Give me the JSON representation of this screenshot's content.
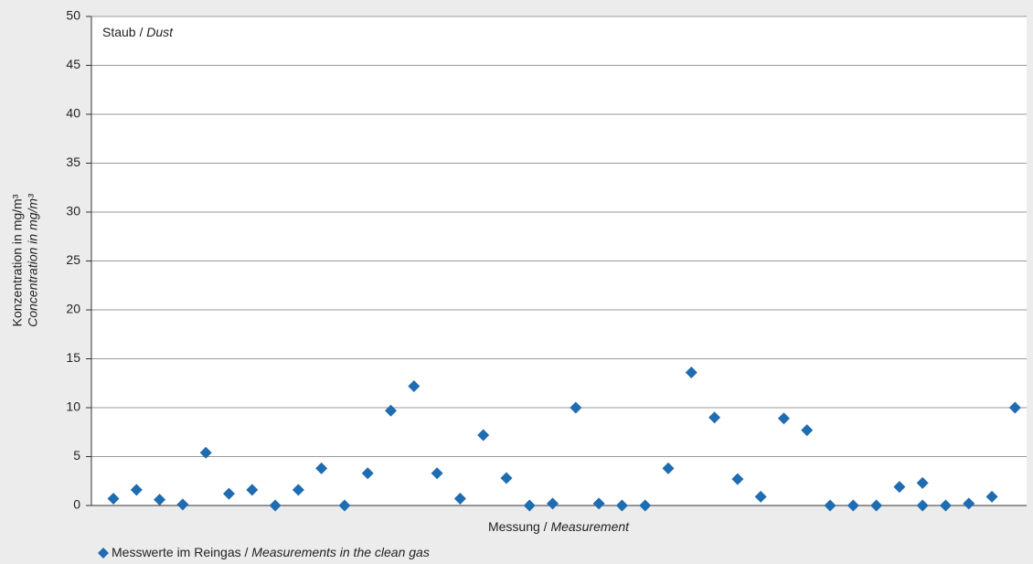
{
  "chart_data": {
    "type": "scatter",
    "annotation": {
      "main": "Staub / ",
      "italic": "Dust"
    },
    "y_label": [
      "Konzentration in mg/m³",
      "Concentration in mg/m³"
    ],
    "x_label": {
      "main": "Messung / ",
      "italic": "Measurement"
    },
    "series": [
      {
        "name": {
          "main": "Messwerte im Reingas / ",
          "italic": "Measurements in the clean gas"
        },
        "color": "#1f6cb0",
        "x": [
          1,
          2,
          3,
          4,
          5,
          6,
          7,
          8,
          9,
          10,
          11,
          12,
          13,
          14,
          15,
          16,
          17,
          18,
          19,
          20,
          21,
          22,
          23,
          24,
          25,
          26,
          27,
          28,
          29,
          30,
          31,
          32,
          33,
          34,
          35,
          36,
          36,
          37,
          38,
          39,
          40
        ],
        "values": [
          0.7,
          1.6,
          0.6,
          0.1,
          5.4,
          1.2,
          1.6,
          0,
          1.6,
          3.8,
          0,
          3.3,
          9.7,
          12.2,
          3.3,
          0.7,
          7.2,
          2.8,
          0,
          0.2,
          10.0,
          0.2,
          0,
          0,
          3.8,
          13.6,
          9.0,
          2.7,
          0.9,
          8.9,
          7.7,
          0,
          0,
          0,
          1.9,
          2.3,
          0,
          0,
          0.2,
          0.9,
          10.0
        ]
      }
    ],
    "xlim": [
      0.05,
      40.5
    ],
    "ylim": [
      0,
      50
    ],
    "yticks": [
      0,
      5,
      10,
      15,
      20,
      25,
      30,
      35,
      40,
      45,
      50
    ],
    "grid": true
  }
}
